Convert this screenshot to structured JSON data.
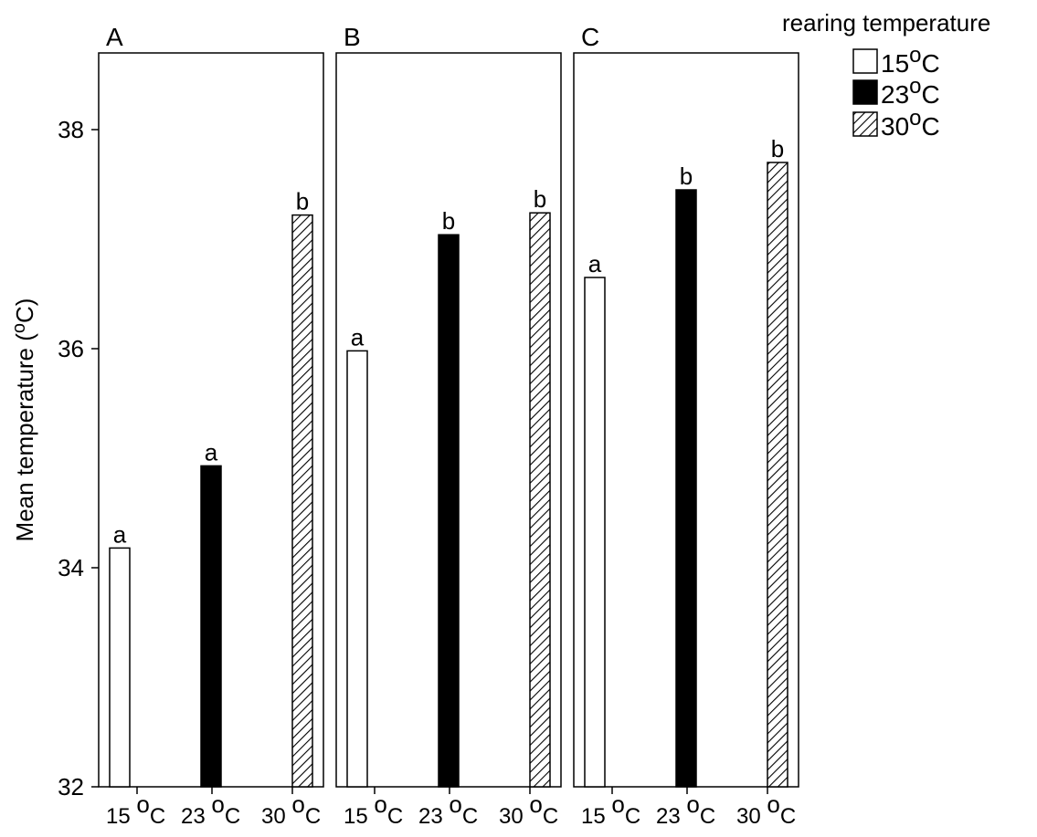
{
  "chart_data": {
    "type": "bar",
    "ylabel": "Mean temperature (",
    "ylabel_sup": "o",
    "ylabel_end": "C)",
    "ylim": [
      32,
      38.7
    ],
    "yticks": [
      "32",
      "34",
      "36",
      "38"
    ],
    "ytick_values": [
      32,
      34,
      36,
      38
    ],
    "categories": [
      {
        "num": "15",
        "sup": "o",
        "unit": "C"
      },
      {
        "num": "23",
        "sup": "o",
        "unit": "C"
      },
      {
        "num": "30",
        "sup": "o",
        "unit": "C"
      }
    ],
    "legend": {
      "title": "rearing temperature",
      "placement": "top-right",
      "entries": [
        {
          "num": "15",
          "sup": "o",
          "unit": "C",
          "fill": "white"
        },
        {
          "num": "23",
          "sup": "o",
          "unit": "C",
          "fill": "black"
        },
        {
          "num": "30",
          "sup": "o",
          "unit": "C",
          "fill": "hatch"
        }
      ]
    },
    "panels": [
      {
        "label": "A",
        "values": [
          34.18,
          34.93,
          37.22
        ],
        "letters": [
          "a",
          "a",
          "b"
        ]
      },
      {
        "label": "B",
        "values": [
          35.98,
          37.04,
          37.24
        ],
        "letters": [
          "a",
          "b",
          "b"
        ]
      },
      {
        "label": "C",
        "values": [
          36.65,
          37.45,
          37.7
        ],
        "letters": [
          "a",
          "b",
          "b"
        ]
      }
    ],
    "colors": {
      "white_bar": "#ffffff",
      "black_bar": "#000000",
      "stroke": "#000000"
    }
  }
}
